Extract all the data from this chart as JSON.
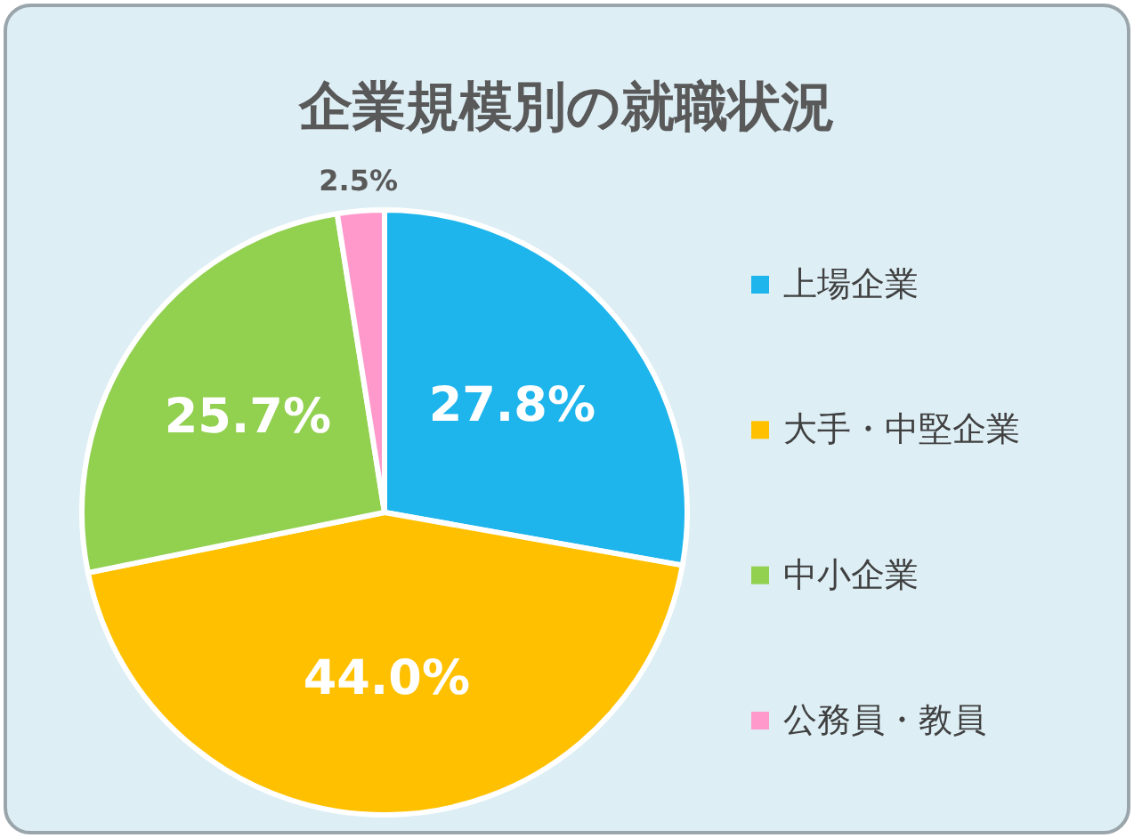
{
  "chart_data": {
    "type": "pie",
    "title": "企業規模別の就職状況",
    "categories": [
      "上場企業",
      "大手・中堅企業",
      "中小企業",
      "公務員・教員"
    ],
    "values": [
      27.8,
      44.0,
      25.7,
      2.5
    ],
    "colors": [
      "#1eb4ec",
      "#ffc000",
      "#92d050",
      "#ff99cc"
    ],
    "value_labels": [
      "27.8%",
      "44.0%",
      "25.7%",
      "2.5%"
    ],
    "legend": "right"
  }
}
